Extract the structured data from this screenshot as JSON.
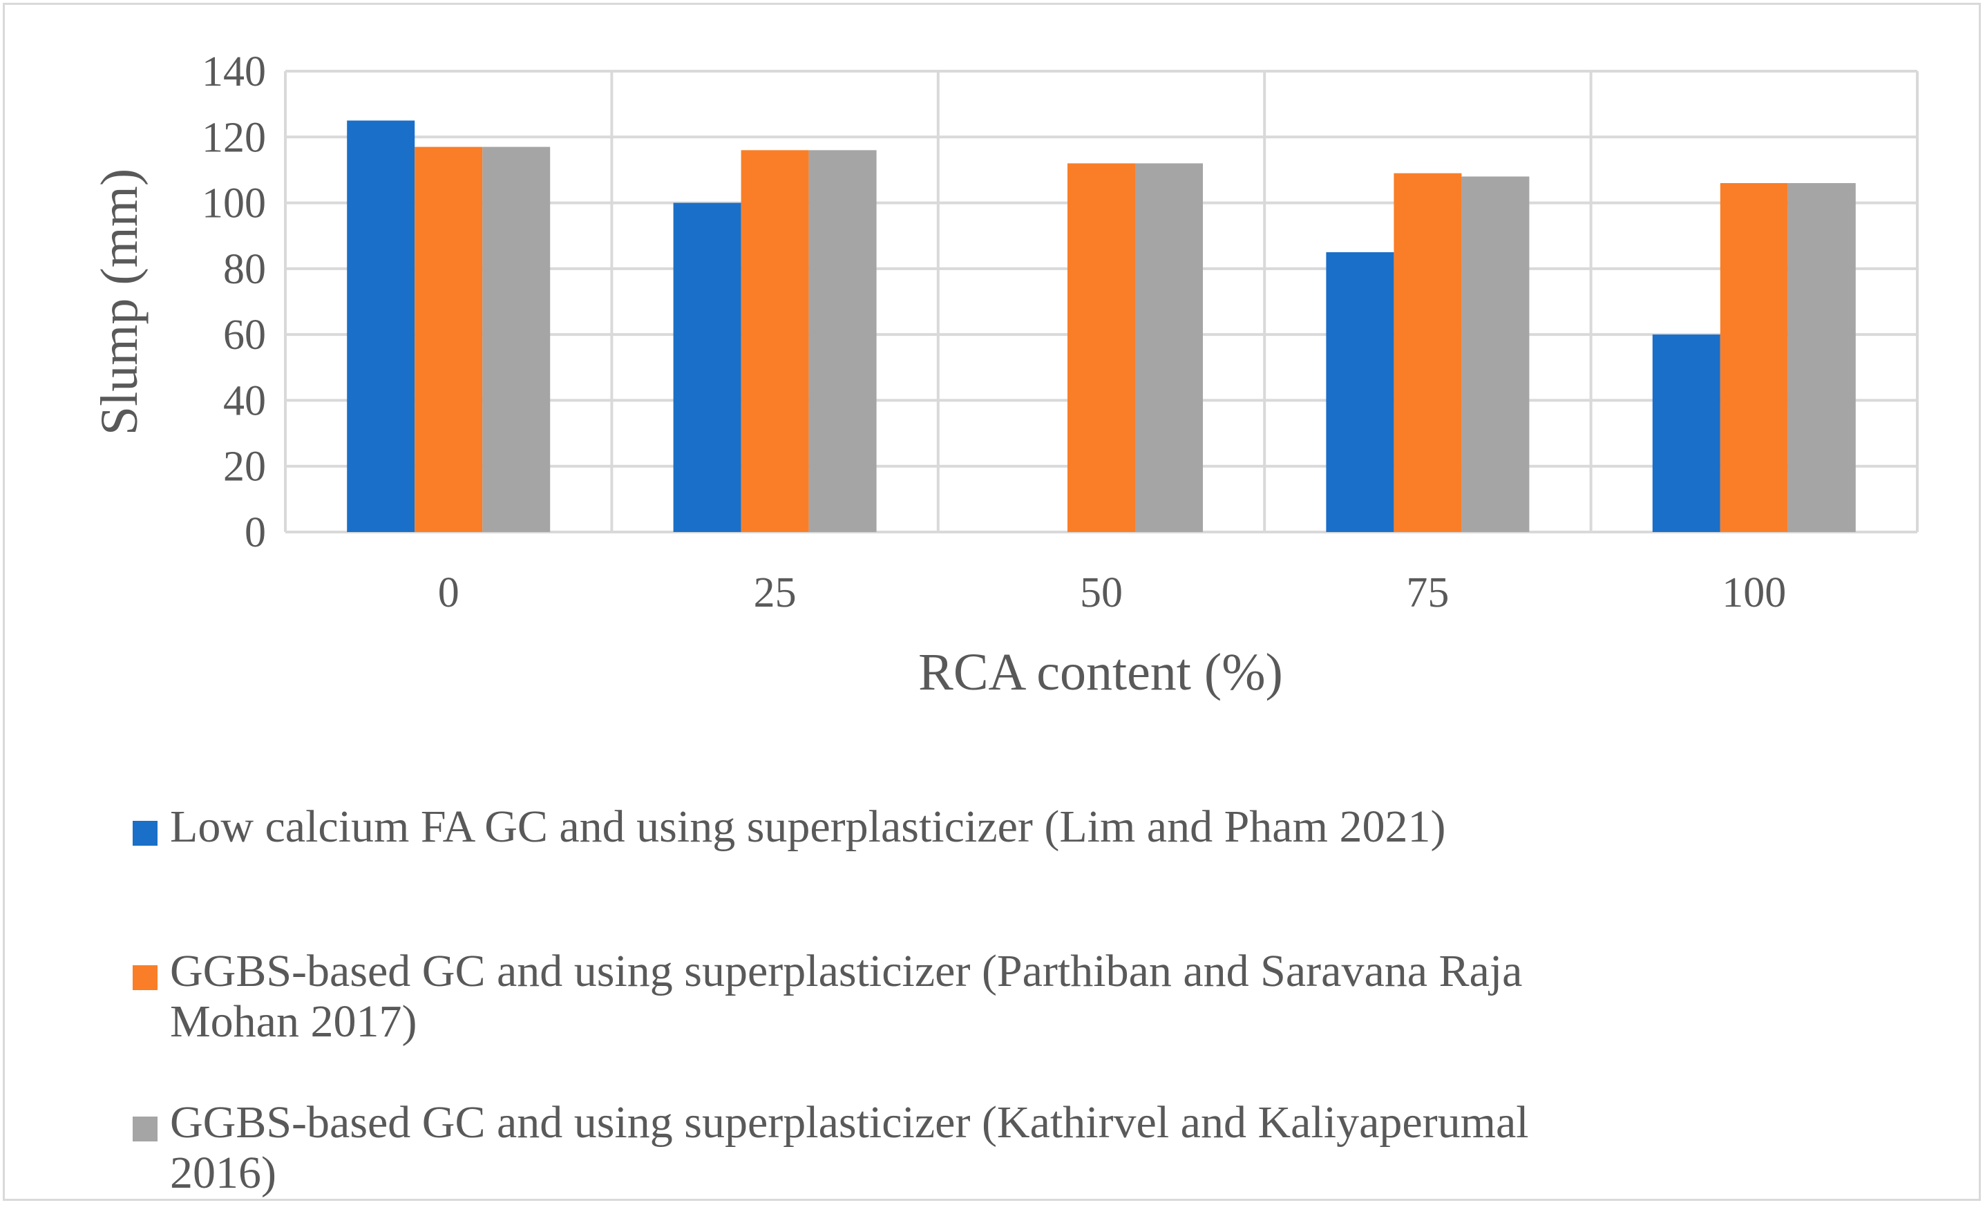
{
  "chart_data": {
    "type": "bar",
    "title": "",
    "xlabel": "RCA content (%)",
    "ylabel": "Slump (mm)",
    "categories": [
      "0",
      "25",
      "50",
      "75",
      "100"
    ],
    "ylim": [
      0,
      140
    ],
    "yticks": [
      0,
      20,
      40,
      60,
      80,
      100,
      120,
      140
    ],
    "grid": true,
    "legend_position": "bottom",
    "series": [
      {
        "name": "Low calcium FA GC and using superplasticizer (Lim and Pham 2021)",
        "color": "#1a6fc8",
        "values": [
          125,
          100,
          null,
          85,
          60
        ]
      },
      {
        "name": "GGBS-based GC and using superplasticizer (Parthiban and Saravana Raja Mohan 2017)",
        "color": "#f97e27",
        "values": [
          117,
          116,
          112,
          109,
          106
        ]
      },
      {
        "name": "GGBS-based GC and using superplasticizer (Kathirvel and Kaliyaperumal 2016)",
        "color": "#a5a5a5",
        "values": [
          117,
          116,
          112,
          108,
          106
        ]
      }
    ]
  }
}
